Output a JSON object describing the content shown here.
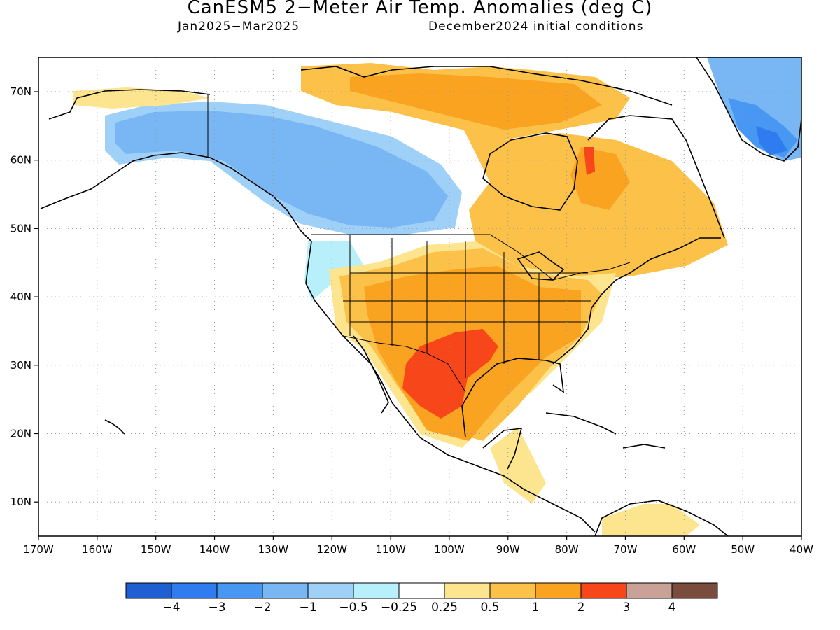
{
  "title": "CanESM5 2−Meter Air Temp. Anomalies (deg C)",
  "subtitle_left": "Jan2025−Mar2025",
  "subtitle_right": "December2024 initial conditions",
  "lat_labels": [
    "70N",
    "60N",
    "50N",
    "40N",
    "30N",
    "20N",
    "10N"
  ],
  "lon_labels": [
    "170W",
    "160W",
    "150W",
    "140W",
    "130W",
    "120W",
    "110W",
    "100W",
    "90W",
    "80W",
    "70W",
    "60W",
    "50W",
    "40W"
  ],
  "colorbar": {
    "colors": [
      "#1f5fd1",
      "#2e7cf0",
      "#4897f2",
      "#78b6f4",
      "#9fd0f7",
      "#b7f0fb",
      "#ffffff",
      "#fde590",
      "#fbc149",
      "#f9a321",
      "#f7461a",
      "#c9a196",
      "#7a4c3e"
    ],
    "labels": [
      "−4",
      "−3",
      "−2",
      "−1",
      "−0.5",
      "−0.25",
      "0.25",
      "0.5",
      "1",
      "2",
      "3",
      "4"
    ]
  },
  "colors": {
    "deep_warm": "#f7461a",
    "warm": "#f9a321",
    "mild_warm": "#fbc149",
    "slight_warm": "#fde590",
    "slight_cool": "#b7f0fb",
    "mild_cool": "#9fd0f7",
    "cool": "#78b6f4",
    "cold": "#4897f2",
    "colder": "#2e7cf0",
    "coldest": "#1f5fd1"
  }
}
